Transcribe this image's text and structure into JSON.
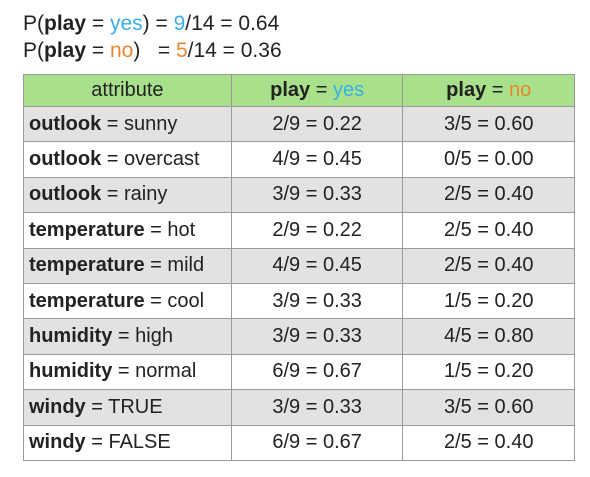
{
  "priors": [
    {
      "prefix": "P(",
      "var": "play",
      "eq": " = ",
      "class": "yes",
      "close": ") = ",
      "num": "9",
      "rest": "/14 = 0.64"
    },
    {
      "prefix": "P(",
      "var": "play",
      "eq": " = ",
      "class": "no",
      "close": ")   = ",
      "num": "5",
      "rest": "/14 = 0.36"
    }
  ],
  "table": {
    "header": {
      "attribute": "attribute",
      "yes_var": "play",
      "yes_eq": " = ",
      "yes_class": "yes",
      "no_var": "play",
      "no_eq": " = ",
      "no_class": "no"
    },
    "rows": [
      {
        "attr": "outlook",
        "eq": " = ",
        "value": "sunny",
        "yes": "2/9 = 0.22",
        "no": "3/5 = 0.60"
      },
      {
        "attr": "outlook",
        "eq": " = ",
        "value": "overcast",
        "yes": "4/9 = 0.45",
        "no": "0/5 = 0.00"
      },
      {
        "attr": "outlook",
        "eq": " = ",
        "value": "rainy",
        "yes": "3/9 = 0.33",
        "no": "2/5 = 0.40"
      },
      {
        "attr": "temperature",
        "eq": " = ",
        "value": "hot",
        "yes": "2/9 = 0.22",
        "no": "2/5 = 0.40"
      },
      {
        "attr": "temperature",
        "eq": " = ",
        "value": "mild",
        "yes": "4/9 = 0.45",
        "no": "2/5 = 0.40"
      },
      {
        "attr": "temperature",
        "eq": " = ",
        "value": "cool",
        "yes": "3/9 = 0.33",
        "no": "1/5 = 0.20"
      },
      {
        "attr": "humidity",
        "eq": " = ",
        "value": "high",
        "yes": "3/9 = 0.33",
        "no": "4/5 = 0.80"
      },
      {
        "attr": "humidity",
        "eq": " = ",
        "value": "normal",
        "yes": "6/9 = 0.67",
        "no": "1/5 = 0.20"
      },
      {
        "attr": "windy",
        "eq": " = ",
        "value": "TRUE",
        "yes": "3/9 = 0.33",
        "no": "3/5 = 0.60"
      },
      {
        "attr": "windy",
        "eq": " = ",
        "value": "FALSE",
        "yes": "6/9 = 0.67",
        "no": "2/5 = 0.40"
      }
    ]
  },
  "colors": {
    "yes": "#3aaee6",
    "no": "#e8882e",
    "header_bg": "#a8e08c",
    "row_alt_bg": "#e2e2e2"
  }
}
